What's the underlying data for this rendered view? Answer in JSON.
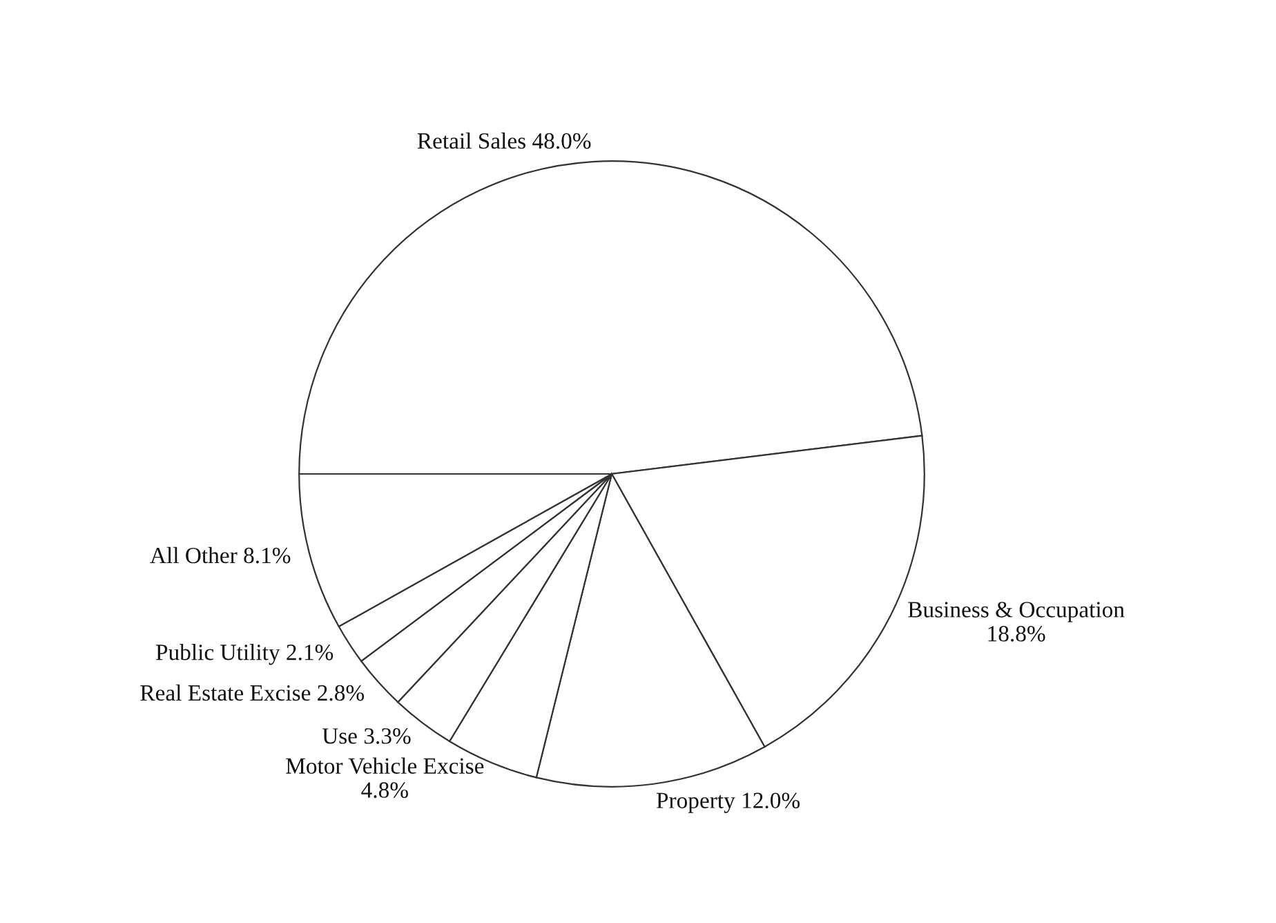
{
  "chart_data": {
    "type": "pie",
    "categories": [
      "Retail Sales",
      "Business & Occupation",
      "Property",
      "Motor Vehicle Excise",
      "Use",
      "Real Estate Excise",
      "Public Utility",
      "All Other"
    ],
    "values": [
      48.0,
      18.8,
      12.0,
      4.8,
      3.3,
      2.8,
      2.1,
      8.1
    ],
    "value_labels": [
      "48.0%",
      "18.8%",
      "12.0%",
      "4.8%",
      "3.3%",
      "2.8%",
      "2.1%",
      "8.1%"
    ],
    "colors": [
      "#ffffff",
      "#ffffff",
      "#ffffff",
      "#ffffff",
      "#ffffff",
      "#ffffff",
      "#ffffff",
      "#ffffff"
    ]
  }
}
